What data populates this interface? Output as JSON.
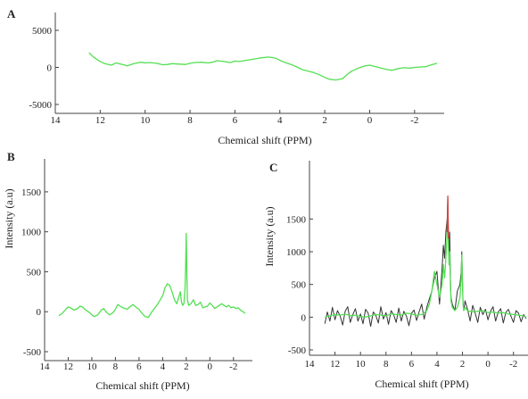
{
  "chart_data": [
    {
      "panel": "A",
      "type": "line",
      "xlabel": "Chemical shift (PPM)",
      "ylabel": "",
      "x_reversed": true,
      "xlim": [
        14,
        -3
      ],
      "ylim": [
        -5000,
        5000
      ],
      "xticks": [
        14,
        12,
        10,
        8,
        6,
        4,
        2,
        0,
        -2
      ],
      "xtick_labels": [
        "14",
        "12",
        "10",
        "8",
        "6",
        "4",
        "2",
        "0",
        "-2"
      ],
      "yticks": [
        -5000,
        0,
        5000
      ],
      "ytick_labels": [
        "-5000",
        "0",
        "5000"
      ],
      "series": [
        {
          "color": "#52e052",
          "x": [
            12.5,
            12.3,
            12.0,
            11.8,
            11.5,
            11.3,
            11.0,
            10.8,
            10.5,
            10.2,
            10.0,
            9.8,
            9.5,
            9.2,
            9.0,
            8.8,
            8.5,
            8.2,
            8.0,
            7.8,
            7.5,
            7.2,
            7.0,
            6.8,
            6.5,
            6.2,
            6.0,
            5.8,
            5.5,
            5.2,
            5.0,
            4.8,
            4.5,
            4.2,
            4.0,
            3.8,
            3.5,
            3.2,
            3.0,
            2.8,
            2.5,
            2.2,
            2.0,
            1.8,
            1.5,
            1.2,
            1.0,
            0.8,
            0.5,
            0.2,
            0.0,
            -0.2,
            -0.5,
            -0.8,
            -1.0,
            -1.2,
            -1.5,
            -1.8,
            -2.0,
            -2.2,
            -2.5
          ],
          "y": [
            2000,
            1400,
            800,
            500,
            300,
            600,
            400,
            200,
            500,
            700,
            600,
            650,
            550,
            350,
            400,
            500,
            450,
            400,
            550,
            650,
            700,
            600,
            700,
            900,
            800,
            650,
            850,
            800,
            950,
            1100,
            1200,
            1300,
            1400,
            1250,
            950,
            700,
            400,
            0,
            -300,
            -450,
            -700,
            -1050,
            -1350,
            -1600,
            -1700,
            -1500,
            -950,
            -500,
            -100,
            200,
            300,
            150,
            -100,
            -300,
            -400,
            -200,
            -50,
            -100,
            0,
            50,
            100
          ]
        }
      ],
      "series_tail": {
        "x": [
          -2.7,
          -3.0,
          -3.2
        ],
        "y": [
          300,
          550,
          800
        ]
      }
    },
    {
      "panel": "B",
      "type": "line",
      "xlabel": "Chemical shift (PPM)",
      "ylabel": "Intensity (a.u)",
      "x_reversed": true,
      "xlim": [
        14,
        -3
      ],
      "ylim": [
        -500,
        1700
      ],
      "xticks": [
        14,
        12,
        10,
        8,
        6,
        4,
        2,
        0,
        -2
      ],
      "xtick_labels": [
        "14",
        "12",
        "10",
        "8",
        "6",
        "4",
        "2",
        "0",
        "-2"
      ],
      "yticks": [
        -500,
        0,
        500,
        1000,
        1500
      ],
      "ytick_labels": [
        "-500",
        "0",
        "500",
        "1000",
        "1500"
      ],
      "series": [
        {
          "color": "#52e052",
          "x": [
            12.8,
            12.5,
            12.2,
            12.0,
            11.8,
            11.5,
            11.2,
            11.0,
            10.8,
            10.5,
            10.2,
            10.0,
            9.8,
            9.5,
            9.2,
            9.0,
            8.8,
            8.5,
            8.2,
            8.0,
            7.8,
            7.5,
            7.2,
            7.0,
            6.8,
            6.5,
            6.2,
            6.0,
            5.8,
            5.5,
            5.2,
            5.0,
            4.8,
            4.6,
            4.4,
            4.2,
            4.0,
            3.8,
            3.6,
            3.4,
            3.2,
            3.0,
            2.8,
            2.6,
            2.5,
            2.4,
            2.3,
            2.2,
            2.1,
            2.05,
            2.0,
            1.95,
            1.9,
            1.8,
            1.6,
            1.4,
            1.2,
            1.0,
            0.8,
            0.6,
            0.4,
            0.2,
            0.0,
            -0.2,
            -0.4,
            -0.6,
            -0.8,
            -1.0,
            -1.2,
            -1.4,
            -1.6,
            -1.8,
            -2.0,
            -2.2,
            -2.4,
            -2.6,
            -2.8,
            -3.0
          ],
          "y": [
            -50,
            -20,
            30,
            60,
            50,
            20,
            40,
            70,
            60,
            20,
            -10,
            -40,
            -60,
            -40,
            20,
            40,
            0,
            -40,
            -10,
            30,
            90,
            60,
            40,
            30,
            60,
            90,
            50,
            30,
            -10,
            -60,
            -70,
            -20,
            20,
            60,
            100,
            150,
            200,
            300,
            350,
            330,
            250,
            150,
            100,
            200,
            250,
            120,
            80,
            100,
            300,
            600,
            980,
            500,
            150,
            80,
            100,
            150,
            80,
            90,
            120,
            50,
            60,
            70,
            110,
            80,
            40,
            60,
            80,
            100,
            80,
            60,
            80,
            50,
            60,
            40,
            50,
            20,
            0,
            -20
          ]
        }
      ]
    },
    {
      "panel": "C",
      "type": "line",
      "xlabel": "Chemical shift (PPM)",
      "ylabel": "Intensity (a.u)",
      "x_reversed": true,
      "xlim": [
        14,
        -3
      ],
      "ylim": [
        -500,
        1900
      ],
      "xticks": [
        14,
        12,
        10,
        8,
        6,
        4,
        2,
        0,
        -2
      ],
      "xtick_labels": [
        "14",
        "12",
        "10",
        "8",
        "6",
        "4",
        "2",
        "0",
        "-2"
      ],
      "yticks": [
        -500,
        0,
        500,
        1000,
        1500
      ],
      "ytick_labels": [
        "-500",
        "0",
        "500",
        "1000",
        "1500"
      ],
      "series": [
        {
          "color": "#333333",
          "x": [
            12.8,
            12.6,
            12.4,
            12.2,
            12.0,
            11.8,
            11.6,
            11.4,
            11.2,
            11.0,
            10.8,
            10.6,
            10.4,
            10.2,
            10.0,
            9.8,
            9.6,
            9.4,
            9.2,
            9.0,
            8.8,
            8.6,
            8.4,
            8.2,
            8.0,
            7.8,
            7.6,
            7.4,
            7.2,
            7.0,
            6.8,
            6.6,
            6.4,
            6.2,
            6.0,
            5.8,
            5.6,
            5.4,
            5.2,
            5.0,
            4.8,
            4.6,
            4.4,
            4.2,
            4.0,
            3.8,
            3.6,
            3.5,
            3.4,
            3.3,
            3.2,
            3.15,
            3.1,
            3.05,
            3.0,
            2.95,
            2.9,
            2.8,
            2.6,
            2.4,
            2.2,
            2.1,
            2.05,
            2.0,
            1.95,
            1.9,
            1.8,
            1.6,
            1.4,
            1.2,
            1.0,
            0.8,
            0.6,
            0.4,
            0.2,
            0.0,
            -0.2,
            -0.4,
            -0.6,
            -0.8,
            -1.0,
            -1.2,
            -1.4,
            -1.6,
            -1.8,
            -2.0,
            -2.2,
            -2.4,
            -2.6,
            -2.8,
            -3.0
          ],
          "y": [
            -100,
            80,
            -60,
            150,
            -40,
            100,
            20,
            -120,
            90,
            160,
            -80,
            40,
            130,
            -60,
            50,
            -100,
            120,
            60,
            -140,
            80,
            30,
            -90,
            160,
            -30,
            70,
            -110,
            100,
            40,
            -80,
            140,
            -60,
            90,
            20,
            -130,
            60,
            110,
            -50,
            80,
            200,
            -30,
            150,
            280,
            400,
            600,
            700,
            200,
            750,
            1100,
            900,
            1300,
            1500,
            1800,
            1200,
            1000,
            1300,
            600,
            300,
            200,
            100,
            400,
            500,
            700,
            1000,
            600,
            200,
            100,
            250,
            120,
            -60,
            180,
            60,
            -80,
            150,
            40,
            120,
            -40,
            90,
            160,
            -60,
            80,
            130,
            -90,
            70,
            120,
            20,
            -80,
            100,
            60,
            -70,
            40,
            -20
          ]
        },
        {
          "color": "#52e052",
          "x": [
            12.8,
            12.4,
            12.0,
            11.6,
            11.2,
            10.8,
            10.4,
            10.0,
            9.6,
            9.2,
            8.8,
            8.4,
            8.0,
            7.6,
            7.2,
            6.8,
            6.4,
            6.0,
            5.6,
            5.2,
            4.8,
            4.6,
            4.4,
            4.2,
            4.0,
            3.8,
            3.6,
            3.5,
            3.4,
            3.3,
            3.2,
            3.15,
            3.1,
            3.05,
            3.0,
            2.95,
            2.9,
            2.8,
            2.6,
            2.4,
            2.2,
            2.1,
            2.05,
            2.0,
            1.95,
            1.9,
            1.8,
            1.6,
            1.2,
            0.8,
            0.4,
            0.0,
            -0.4,
            -0.8,
            -1.2,
            -1.6,
            -2.0,
            -2.4,
            -2.8,
            -3.0
          ],
          "y": [
            0,
            20,
            40,
            30,
            50,
            20,
            30,
            10,
            0,
            20,
            40,
            30,
            20,
            50,
            40,
            30,
            60,
            50,
            30,
            40,
            100,
            200,
            400,
            700,
            500,
            300,
            500,
            800,
            600,
            900,
            1300,
            1800,
            1100,
            800,
            1000,
            500,
            250,
            150,
            100,
            150,
            300,
            600,
            950,
            500,
            200,
            100,
            150,
            100,
            80,
            90,
            100,
            70,
            80,
            60,
            70,
            50,
            40,
            30,
            20,
            0
          ]
        },
        {
          "color": "#d94040",
          "x": [
            3.2,
            3.15,
            3.1
          ],
          "y": [
            1300,
            1850,
            1200
          ]
        }
      ]
    }
  ],
  "panel_labels": {
    "a": "A",
    "b": "B",
    "c": "C"
  }
}
